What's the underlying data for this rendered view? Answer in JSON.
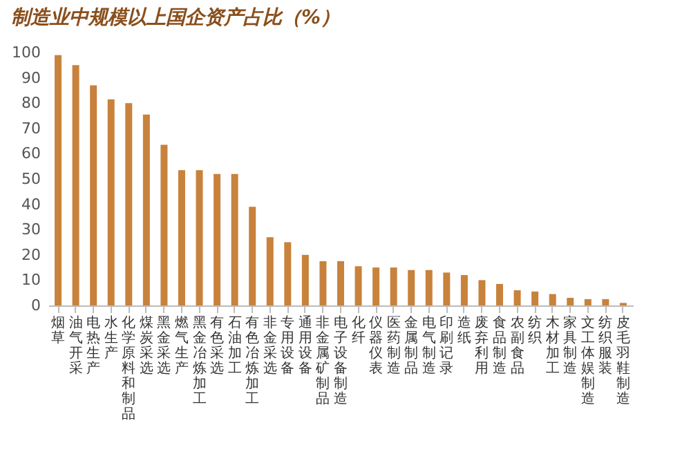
{
  "chart_data": {
    "type": "bar",
    "title": "制造业中规模以上国企资产占比（%）",
    "categories": [
      "烟草",
      "油气开采",
      "电热生产",
      "水生产",
      "化学原料和制品",
      "煤炭采选",
      "黑金采选",
      "燃气生产",
      "黑金冶炼加工",
      "有色采选",
      "石油加工",
      "有色冶炼加工",
      "非金采选",
      "专用设备",
      "通用设备",
      "非金属矿制品",
      "电子设备制造",
      "化纤",
      "仪器仪表",
      "医药制造",
      "金属制品",
      "电气制造",
      "印刷记录",
      "造纸",
      "废弃利用",
      "食品制造",
      "农副食品",
      "纺织",
      "木材加工",
      "家具制造",
      "文工体娱制造",
      "纺织服装",
      "皮毛羽鞋制造"
    ],
    "values": [
      99,
      95,
      87,
      81.5,
      80,
      75.5,
      63.5,
      53.5,
      53.5,
      52,
      52,
      39,
      27,
      25,
      20,
      17.5,
      17.5,
      15.5,
      15,
      15,
      14,
      14,
      13,
      12,
      10,
      8.5,
      6,
      5.5,
      4.5,
      3,
      2.5,
      2.5,
      1
    ],
    "color": "#c8823c",
    "ylim": [
      0,
      100
    ],
    "yticks": [
      0,
      10,
      20,
      30,
      40,
      50,
      60,
      70,
      80,
      90,
      100
    ],
    "grid": false
  }
}
